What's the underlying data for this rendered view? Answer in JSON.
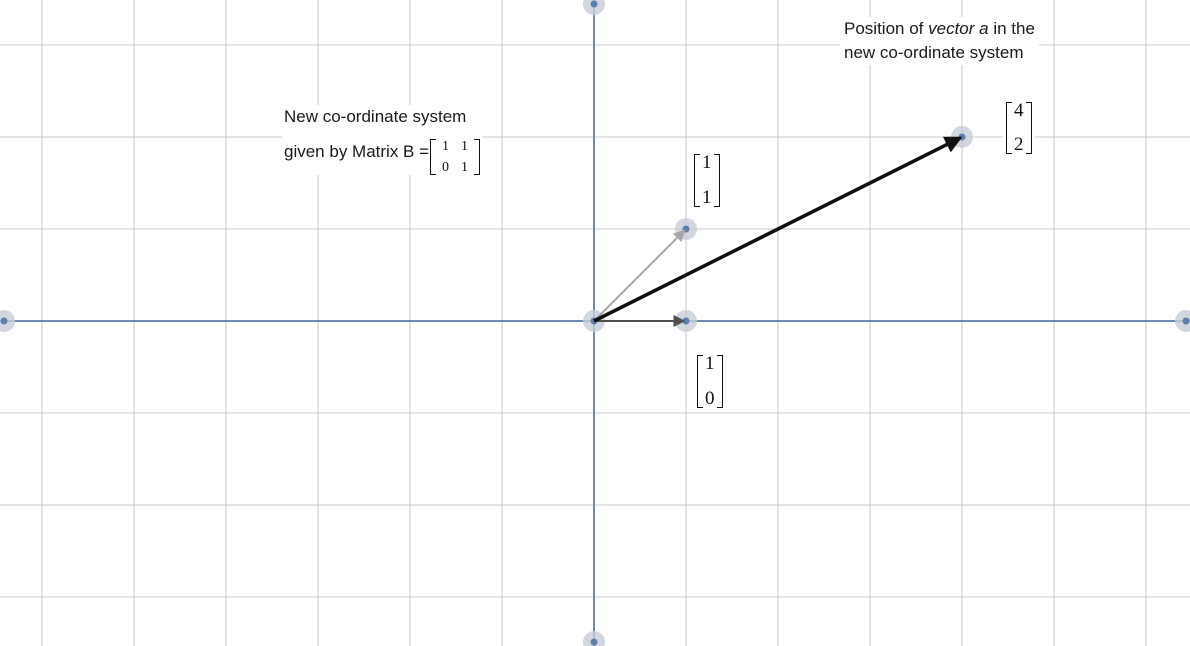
{
  "colors": {
    "grid": "#c8c8c8",
    "axis": "#6a8cb5",
    "point_fill": "#5d7fae",
    "point_halo": "#c7ccd6",
    "vector_a": "#111111",
    "basis_i": "#505050",
    "basis_j": "#a8a8a8"
  },
  "diagram": {
    "unit_step": 1,
    "grid_x_range": [
      -6.5,
      6.5
    ],
    "grid_y_range": [
      -3.5,
      3.5
    ],
    "axis_points": [
      [
        -6.5,
        0
      ],
      [
        6.5,
        0
      ],
      [
        0,
        3.5
      ],
      [
        0,
        -3.5
      ]
    ],
    "basis_vector_1": [
      1,
      0
    ],
    "basis_vector_2": [
      1,
      1
    ],
    "vector_a": [
      4,
      2
    ]
  },
  "labels": {
    "system_line1": "New co-ordinate system",
    "system_line2": "given by Matrix B =",
    "matrix_b": [
      [
        "1",
        "1"
      ],
      [
        "0",
        "1"
      ]
    ],
    "position_line1_prefix": "Position of ",
    "position_line1_emph": "vector a",
    "position_line1_suffix": " in the",
    "position_line2": "new co-ordinate system",
    "vec_i_top": "1",
    "vec_i_bottom": "0",
    "vec_j_top": "1",
    "vec_j_bottom": "1",
    "vec_a_top": "4",
    "vec_a_bottom": "2"
  }
}
